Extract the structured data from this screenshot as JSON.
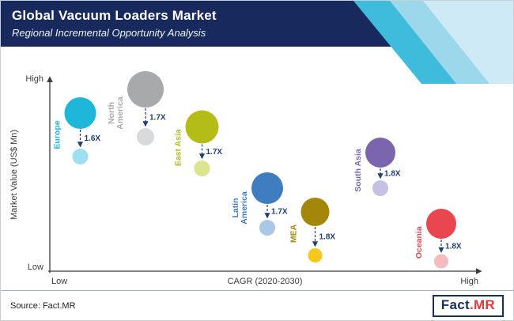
{
  "header": {
    "title": "Global Vacuum Loaders Market",
    "subtitle": "Regional Incremental Opportunity Analysis"
  },
  "chart_data": {
    "type": "scatter",
    "title": "Regional Incremental Opportunity Analysis",
    "xlabel": "CAGR (2020-2030)",
    "ylabel": "Market Value (US$ Mn)",
    "x_axis_range": [
      "Low",
      "High"
    ],
    "y_axis_range": [
      "Low",
      "High"
    ],
    "axis_color": "#3c3c3c",
    "arrow_color": "#223f72",
    "regions": [
      {
        "name": "Europe",
        "label_lines": [
          "Europe"
        ],
        "multiplier": "1.6X",
        "cagr": 0.07,
        "market_value": 0.8,
        "opportunity_value": 0.58,
        "bubble_r": 20,
        "small_r": 10,
        "color": "#1fb7d9",
        "light_color": "#9edff2"
      },
      {
        "name": "North America",
        "label_lines": [
          "North",
          "America"
        ],
        "multiplier": "1.7X",
        "cagr": 0.22,
        "market_value": 0.92,
        "opportunity_value": 0.68,
        "bubble_r": 23,
        "small_r": 11,
        "color": "#a7a9ab",
        "light_color": "#d9dadb"
      },
      {
        "name": "East Asia",
        "label_lines": [
          "East Asia"
        ],
        "multiplier": "1.7X",
        "cagr": 0.35,
        "market_value": 0.73,
        "opportunity_value": 0.52,
        "bubble_r": 21,
        "small_r": 10,
        "color": "#b4bd17",
        "light_color": "#dce48f"
      },
      {
        "name": "Latin America",
        "label_lines": [
          "Latin",
          "America"
        ],
        "multiplier": "1.7X",
        "cagr": 0.5,
        "market_value": 0.42,
        "opportunity_value": 0.22,
        "bubble_r": 20,
        "small_r": 10,
        "color": "#3e7dc0",
        "light_color": "#a9c8e8"
      },
      {
        "name": "MEA",
        "label_lines": [
          "MEA"
        ],
        "multiplier": "1.8X",
        "cagr": 0.61,
        "market_value": 0.3,
        "opportunity_value": 0.08,
        "bubble_r": 18,
        "small_r": 9,
        "color": "#a28708",
        "light_color": "#f4c91e"
      },
      {
        "name": "South Asia",
        "label_lines": [
          "South Asia"
        ],
        "multiplier": "1.8X",
        "cagr": 0.76,
        "market_value": 0.6,
        "opportunity_value": 0.42,
        "bubble_r": 19,
        "small_r": 10,
        "color": "#7b65ae",
        "light_color": "#c7c0e3"
      },
      {
        "name": "Oceania",
        "label_lines": [
          "Oceania"
        ],
        "multiplier": "1.8X",
        "cagr": 0.9,
        "market_value": 0.24,
        "opportunity_value": 0.05,
        "bubble_r": 19,
        "small_r": 9,
        "color": "#e9464f",
        "light_color": "#f5bcc0"
      }
    ]
  },
  "footer": {
    "source": "Source: Fact.MR",
    "logo_fact": "Fact",
    "logo_mr": ".MR"
  }
}
